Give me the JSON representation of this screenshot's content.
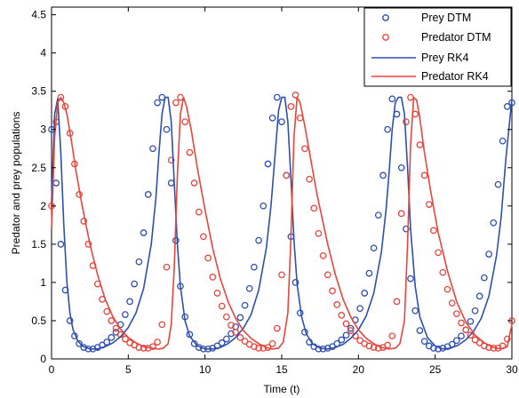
{
  "chart_data": {
    "type": "line",
    "xlabel": "Time (t)",
    "ylabel": "Predator and prey populations",
    "xlim": [
      0,
      30
    ],
    "ylim": [
      0,
      4.6
    ],
    "x_ticks": [
      "0",
      "5",
      "10",
      "15",
      "20",
      "25",
      "30"
    ],
    "y_ticks": [
      "0",
      "0.5",
      "1",
      "1.5",
      "2",
      "2.5",
      "3",
      "3.5",
      "4",
      "4.5"
    ],
    "grid": false,
    "legend_position": "top-right",
    "series": [
      {
        "name": "Prey DTM",
        "style": "markers",
        "color": "#2f4fb0",
        "x": [
          0,
          0.3,
          0.6,
          0.9,
          1.2,
          1.5,
          1.8,
          2.1,
          2.4,
          2.7,
          3,
          3.3,
          3.6,
          3.9,
          4.2,
          4.5,
          4.8,
          5.1,
          5.4,
          5.7,
          6,
          6.3,
          6.6,
          6.9,
          7.2,
          7.5,
          7.8,
          8.1,
          8.4,
          8.7,
          9,
          9.3,
          9.6,
          9.9,
          10.2,
          10.5,
          10.8,
          11.1,
          11.4,
          11.7,
          12,
          12.3,
          12.6,
          12.9,
          13.2,
          13.5,
          13.8,
          14.1,
          14.4,
          14.7,
          15,
          15.3,
          15.6,
          15.9,
          16.2,
          16.5,
          16.8,
          17.1,
          17.4,
          17.7,
          18,
          18.3,
          18.6,
          18.9,
          19.2,
          19.5,
          19.8,
          20.1,
          20.4,
          20.7,
          21,
          21.3,
          21.6,
          21.9,
          22.2,
          22.5,
          22.8,
          23.1,
          23.4,
          23.7,
          24,
          24.3,
          24.6,
          24.9,
          25.2,
          25.5,
          25.8,
          26.1,
          26.4,
          26.7,
          27,
          27.3,
          27.6,
          27.9,
          28.2,
          28.5,
          28.8,
          29.1,
          29.4,
          29.7,
          30
        ],
        "y": [
          3.0,
          2.3,
          1.5,
          0.9,
          0.5,
          0.3,
          0.2,
          0.15,
          0.13,
          0.13,
          0.15,
          0.18,
          0.22,
          0.28,
          0.35,
          0.45,
          0.58,
          0.75,
          0.98,
          1.27,
          1.65,
          2.15,
          2.75,
          3.35,
          3.42,
          3.0,
          2.3,
          1.55,
          0.95,
          0.55,
          0.32,
          0.2,
          0.15,
          0.13,
          0.13,
          0.14,
          0.17,
          0.21,
          0.26,
          0.33,
          0.42,
          0.54,
          0.7,
          0.92,
          1.2,
          1.55,
          2.0,
          2.55,
          3.15,
          3.42,
          3.1,
          2.4,
          1.6,
          1.0,
          0.6,
          0.35,
          0.22,
          0.16,
          0.13,
          0.13,
          0.14,
          0.16,
          0.2,
          0.25,
          0.31,
          0.4,
          0.51,
          0.66,
          0.86,
          1.12,
          1.45,
          1.88,
          2.4,
          3.0,
          3.4,
          3.2,
          2.5,
          1.7,
          1.05,
          0.63,
          0.37,
          0.23,
          0.17,
          0.14,
          0.13,
          0.14,
          0.16,
          0.19,
          0.24,
          0.3,
          0.38,
          0.49,
          0.63,
          0.82,
          1.06,
          1.37,
          1.78,
          2.28,
          2.85,
          3.3,
          3.35
        ]
      },
      {
        "name": "Predator DTM",
        "style": "markers",
        "color": "#e8453c",
        "x": [
          0,
          0.3,
          0.6,
          0.9,
          1.2,
          1.5,
          1.8,
          2.1,
          2.4,
          2.7,
          3,
          3.3,
          3.6,
          3.9,
          4.2,
          4.5,
          4.8,
          5.1,
          5.4,
          5.7,
          6,
          6.3,
          6.6,
          6.9,
          7.2,
          7.5,
          7.8,
          8.1,
          8.4,
          8.7,
          9,
          9.3,
          9.6,
          9.9,
          10.2,
          10.5,
          10.8,
          11.1,
          11.4,
          11.7,
          12,
          12.3,
          12.6,
          12.9,
          13.2,
          13.5,
          13.8,
          14.1,
          14.4,
          14.7,
          15,
          15.3,
          15.6,
          15.9,
          16.2,
          16.5,
          16.8,
          17.1,
          17.4,
          17.7,
          18,
          18.3,
          18.6,
          18.9,
          19.2,
          19.5,
          19.8,
          20.1,
          20.4,
          20.7,
          21,
          21.3,
          21.6,
          21.9,
          22.2,
          22.5,
          22.8,
          23.1,
          23.4,
          23.7,
          24,
          24.3,
          24.6,
          24.9,
          25.2,
          25.5,
          25.8,
          26.1,
          26.4,
          26.7,
          27,
          27.3,
          27.6,
          27.9,
          28.2,
          28.5,
          28.8,
          29.1,
          29.4,
          29.7,
          30
        ],
        "y": [
          2.0,
          3.1,
          3.42,
          3.3,
          2.95,
          2.55,
          2.15,
          1.8,
          1.5,
          1.22,
          0.98,
          0.78,
          0.62,
          0.5,
          0.4,
          0.32,
          0.26,
          0.21,
          0.18,
          0.15,
          0.14,
          0.14,
          0.16,
          0.22,
          0.45,
          1.2,
          2.6,
          3.35,
          3.42,
          3.1,
          2.7,
          2.3,
          1.92,
          1.6,
          1.32,
          1.07,
          0.86,
          0.69,
          0.55,
          0.44,
          0.35,
          0.28,
          0.23,
          0.19,
          0.16,
          0.14,
          0.14,
          0.15,
          0.2,
          0.4,
          1.1,
          2.4,
          3.3,
          3.45,
          3.15,
          2.75,
          2.35,
          1.97,
          1.64,
          1.35,
          1.1,
          0.89,
          0.71,
          0.57,
          0.46,
          0.37,
          0.3,
          0.24,
          0.2,
          0.17,
          0.15,
          0.14,
          0.15,
          0.18,
          0.3,
          0.75,
          1.9,
          3.1,
          3.42,
          3.2,
          2.8,
          2.4,
          2.02,
          1.68,
          1.39,
          1.13,
          0.91,
          0.73,
          0.59,
          0.47,
          0.38,
          0.31,
          0.25,
          0.21,
          0.17,
          0.15,
          0.14,
          0.14,
          0.17,
          0.26,
          0.5
        ]
      },
      {
        "name": "Prey RK4",
        "style": "line",
        "color": "#2f4fb0",
        "x": [
          0,
          0.2,
          0.4,
          0.6,
          0.8,
          1,
          1.2,
          1.4,
          1.7,
          2,
          2.5,
          3,
          3.5,
          4,
          4.5,
          5,
          5.5,
          6,
          6.5,
          6.8,
          7,
          7.2,
          7.4,
          7.6,
          7.8,
          8,
          8.2,
          8.4,
          8.7,
          9,
          9.5,
          10,
          10.5,
          11,
          11.5,
          12,
          12.5,
          13,
          13.5,
          14,
          14.3,
          14.6,
          14.8,
          15,
          15.2,
          15.4,
          15.6,
          15.8,
          16,
          16.3,
          16.6,
          17,
          17.5,
          18,
          18.5,
          19,
          19.5,
          20,
          20.5,
          21,
          21.5,
          21.8,
          22,
          22.2,
          22.4,
          22.6,
          22.8,
          23,
          23.2,
          23.4,
          23.7,
          24,
          24.5,
          25,
          25.5,
          26,
          26.5,
          27,
          27.5,
          28,
          28.5,
          29,
          29.3,
          29.6,
          30
        ],
        "y": [
          2.05,
          3.2,
          3.4,
          2.7,
          1.75,
          1.0,
          0.6,
          0.38,
          0.24,
          0.17,
          0.13,
          0.13,
          0.16,
          0.21,
          0.29,
          0.41,
          0.6,
          0.92,
          1.5,
          2.1,
          2.7,
          3.2,
          3.42,
          3.42,
          3.1,
          2.3,
          1.5,
          0.95,
          0.5,
          0.3,
          0.17,
          0.13,
          0.13,
          0.15,
          0.2,
          0.28,
          0.4,
          0.58,
          0.9,
          1.45,
          2.0,
          2.75,
          3.25,
          3.42,
          3.42,
          3.1,
          2.35,
          1.55,
          0.98,
          0.55,
          0.33,
          0.2,
          0.14,
          0.13,
          0.15,
          0.19,
          0.27,
          0.38,
          0.56,
          0.86,
          1.4,
          1.95,
          2.45,
          3.0,
          3.35,
          3.42,
          3.42,
          3.2,
          2.5,
          1.7,
          0.95,
          0.55,
          0.28,
          0.17,
          0.13,
          0.14,
          0.18,
          0.25,
          0.36,
          0.53,
          0.82,
          1.35,
          1.85,
          2.6,
          3.4
        ]
      },
      {
        "name": "Predator RK4",
        "style": "line",
        "color": "#e8453c",
        "x": [
          0,
          0.2,
          0.4,
          0.6,
          0.8,
          1,
          1.3,
          1.6,
          2,
          2.5,
          3,
          3.5,
          4,
          4.5,
          5,
          5.5,
          6,
          6.5,
          7,
          7.3,
          7.6,
          7.8,
          8,
          8.2,
          8.4,
          8.6,
          8.8,
          9.1,
          9.5,
          10,
          10.5,
          11,
          11.5,
          12,
          12.5,
          13,
          13.5,
          14,
          14.4,
          14.8,
          15.1,
          15.4,
          15.6,
          15.8,
          16,
          16.2,
          16.5,
          16.9,
          17.3,
          18,
          18.5,
          19,
          19.5,
          20,
          20.5,
          21,
          21.5,
          22,
          22.4,
          22.7,
          23,
          23.2,
          23.4,
          23.6,
          23.8,
          24,
          24.3,
          24.7,
          25.2,
          25.8,
          26.4,
          27,
          27.6,
          28.2,
          28.8,
          29.3,
          29.7,
          30
        ],
        "y": [
          1.7,
          2.9,
          3.35,
          3.42,
          3.35,
          3.2,
          2.85,
          2.45,
          2.0,
          1.5,
          1.1,
          0.78,
          0.55,
          0.39,
          0.28,
          0.21,
          0.16,
          0.14,
          0.13,
          0.14,
          0.2,
          0.45,
          1.2,
          2.4,
          3.2,
          3.42,
          3.3,
          3.0,
          2.5,
          1.95,
          1.45,
          1.05,
          0.75,
          0.53,
          0.37,
          0.27,
          0.2,
          0.15,
          0.13,
          0.14,
          0.22,
          0.6,
          1.6,
          2.9,
          3.42,
          3.35,
          3.05,
          2.6,
          2.15,
          1.5,
          1.1,
          0.78,
          0.55,
          0.38,
          0.27,
          0.2,
          0.15,
          0.13,
          0.14,
          0.2,
          0.5,
          1.5,
          2.8,
          3.42,
          3.38,
          3.15,
          2.7,
          2.2,
          1.65,
          1.15,
          0.75,
          0.48,
          0.31,
          0.21,
          0.15,
          0.13,
          0.16,
          0.45
        ]
      }
    ]
  }
}
